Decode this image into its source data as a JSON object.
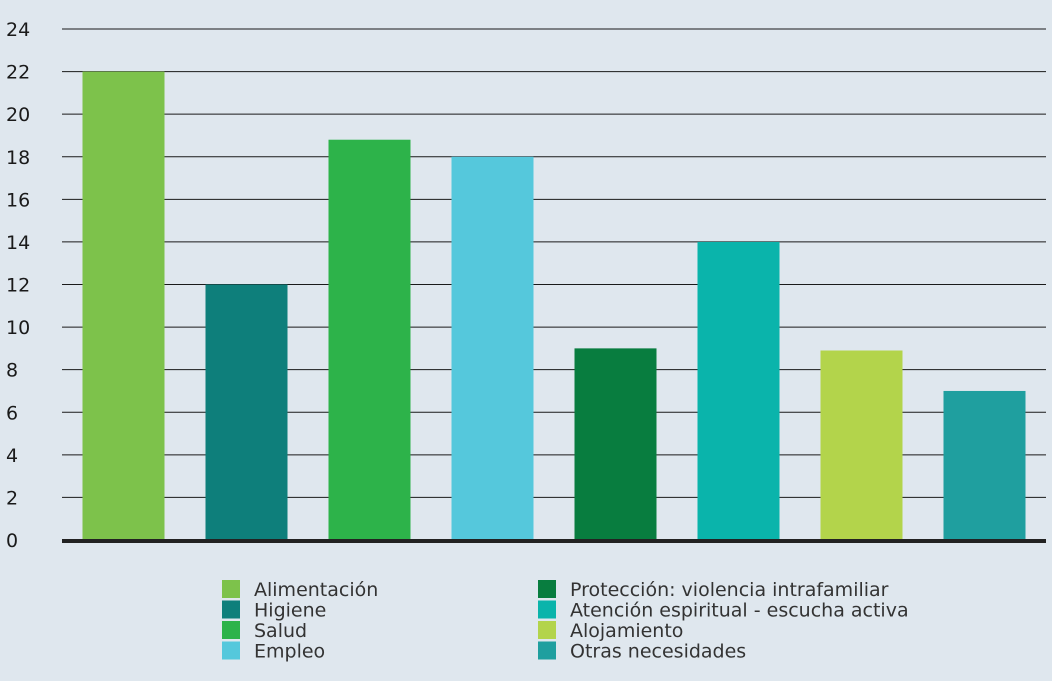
{
  "chart_data": {
    "type": "bar",
    "categories": [
      "Alimentación",
      "Higiene",
      "Salud",
      "Empleo",
      "Protección: violencia intrafamiliar",
      "Atención espiritual - escucha activa",
      "Alojamiento",
      "Otras necesidades"
    ],
    "values": [
      22,
      12,
      18.8,
      18,
      9,
      14,
      8.9,
      7
    ],
    "colors": [
      "#7dc24b",
      "#0e7f7b",
      "#2db34a",
      "#55c8dc",
      "#087d3f",
      "#0ab4ab",
      "#b3d44b",
      "#1f9f9f"
    ],
    "ylim": [
      0,
      24
    ],
    "yticks": [
      0,
      2,
      4,
      6,
      8,
      10,
      12,
      14,
      16,
      18,
      20,
      22,
      24
    ],
    "grid": true,
    "legend_position": "bottom",
    "title": "",
    "xlabel": "",
    "ylabel": ""
  }
}
